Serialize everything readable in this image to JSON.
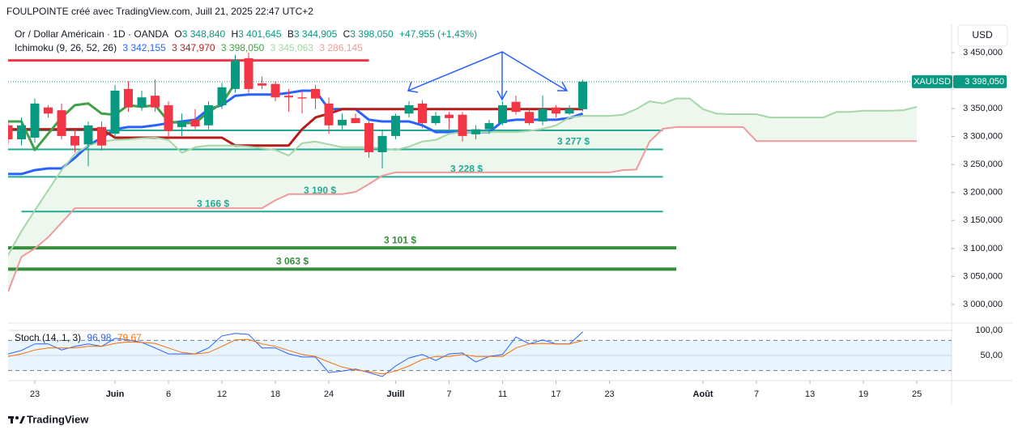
{
  "header": {
    "title": "FOULPOINTE créé avec TradingView.com, Juill 21, 2025 22:47 UTC+2",
    "symbol": "Or / Dollar Américain · 1D · OANDA",
    "ohlc": [
      {
        "letter": "O",
        "value": "3 348,840"
      },
      {
        "letter": "H",
        "value": "3 401,645"
      },
      {
        "letter": "B",
        "value": "3 344,905"
      },
      {
        "letter": "C",
        "value": "3 398,050"
      }
    ],
    "change": "+47,955 (+1,43%)",
    "up_color": "#089981",
    "indicator": {
      "name": "Ichimoku (9, 26, 52, 26)",
      "values": [
        {
          "value": "3 342,155",
          "color": "#2962ff"
        },
        {
          "value": "3 347,970",
          "color": "#b71c1c"
        },
        {
          "value": "3 398,050",
          "color": "#43a047"
        },
        {
          "value": "3 345,063",
          "color": "#a5d6a7"
        },
        {
          "value": "3 286,145",
          "color": "#ef9a9a"
        }
      ]
    },
    "oscillator": {
      "name": "Stoch (14, 1, 3)",
      "values": [
        {
          "value": "96,98",
          "color": "#2962ff"
        },
        {
          "value": "79,67",
          "color": "#ff6d00"
        }
      ]
    },
    "currency": "USD",
    "brand": "TradingView"
  },
  "chart_data": [
    {
      "type": "candlestick",
      "xlim": [
        0,
        70.6
      ],
      "ylim": [
        2970000,
        3500000
      ],
      "xticks": [
        {
          "value": 2,
          "label": "23"
        },
        {
          "value": 8,
          "label": "Juin"
        },
        {
          "value": 12,
          "label": "6"
        },
        {
          "value": 16,
          "label": "12"
        },
        {
          "value": 20,
          "label": "18"
        },
        {
          "value": 24,
          "label": "24"
        },
        {
          "value": 29,
          "label": "Juill"
        },
        {
          "value": 33,
          "label": "7"
        },
        {
          "value": 37,
          "label": "11"
        },
        {
          "value": 41,
          "label": "17"
        },
        {
          "value": 45,
          "label": "23"
        },
        {
          "value": 52,
          "label": "Août"
        },
        {
          "value": 56,
          "label": "7"
        },
        {
          "value": 60,
          "label": "13"
        },
        {
          "value": 64,
          "label": "19"
        },
        {
          "value": 68,
          "label": "25"
        }
      ],
      "yticks": [
        {
          "value": 3450000,
          "label": "3 450,000"
        },
        {
          "value": 3400000,
          "label": "3 400,000"
        },
        {
          "value": 3350000,
          "label": "3 350,000"
        },
        {
          "value": 3300000,
          "label": "3 300,000"
        },
        {
          "value": 3250000,
          "label": "3 250,000"
        },
        {
          "value": 3200000,
          "label": "3 200,000"
        },
        {
          "value": 3150000,
          "label": "3 150,000"
        },
        {
          "value": 3100000,
          "label": "3 100,000"
        },
        {
          "value": 3050000,
          "label": "3 050,000"
        },
        {
          "value": 3000000,
          "label": "3 000,000"
        }
      ],
      "grid": false,
      "up_color": "#089981",
      "down_color": "#f23645",
      "open": [
        3320000,
        3295000,
        3298000,
        3352000,
        3347000,
        3301000,
        3286000,
        3317000,
        3305000,
        3385000,
        3353000,
        3373000,
        3356000,
        3317000,
        3330000,
        3320000,
        3356000,
        3385000,
        3440000,
        3395000,
        3394000,
        3373000,
        3370000,
        3385000,
        3359000,
        3320000,
        3333000,
        3324000,
        3272000,
        3301000,
        3341000,
        3359000,
        3324000,
        3339000,
        3339000,
        3304000,
        3313000,
        3324000,
        3362000,
        3344000,
        3327000,
        3352000,
        3341000,
        3348840
      ],
      "high": [
        3327000,
        3334000,
        3368000,
        3356000,
        3359000,
        3313000,
        3327000,
        3327000,
        3392000,
        3399000,
        3382000,
        3402000,
        3363000,
        3341000,
        3349000,
        3363000,
        3396000,
        3446000,
        3450000,
        3407000,
        3399000,
        3385000,
        3382000,
        3392000,
        3370000,
        3341000,
        3341000,
        3327000,
        3313000,
        3341000,
        3363000,
        3365000,
        3344000,
        3344000,
        3344000,
        3320000,
        3330000,
        3363000,
        3373000,
        3349000,
        3373000,
        3356000,
        3356000,
        3401645
      ],
      "low": [
        3286000,
        3284000,
        3289000,
        3334000,
        3295000,
        3272000,
        3247000,
        3275000,
        3298000,
        3344000,
        3346000,
        3344000,
        3298000,
        3301000,
        3313000,
        3313000,
        3349000,
        3378000,
        3378000,
        3385000,
        3363000,
        3344000,
        3341000,
        3349000,
        3305000,
        3313000,
        3324000,
        3262000,
        3243000,
        3295000,
        3334000,
        3315000,
        3320000,
        3313000,
        3291000,
        3295000,
        3305000,
        3320000,
        3339000,
        3320000,
        3320000,
        3334000,
        3339000,
        3344905
      ],
      "close": [
        3295000,
        3320000,
        3359000,
        3341000,
        3301000,
        3284000,
        3320000,
        3284000,
        3382000,
        3352000,
        3370000,
        3352000,
        3310000,
        3327000,
        3318000,
        3356000,
        3388000,
        3436000,
        3385000,
        3391000,
        3370000,
        3370000,
        3368000,
        3368000,
        3320000,
        3330000,
        3324000,
        3272000,
        3301000,
        3337000,
        3356000,
        3324000,
        3337000,
        3333000,
        3301000,
        3313000,
        3324000,
        3356000,
        3344000,
        3324000,
        3349000,
        3341000,
        3349000,
        3398050
      ],
      "series": [
        {
          "color": "#2962ff",
          "width": 3,
          "values": [
            3233000,
            3233000,
            3240000,
            3243000,
            3243000,
            3262000,
            3284000,
            3298000,
            3313000,
            3317000,
            3317000,
            3320000,
            3324000,
            3327000,
            3330000,
            3349000,
            3356000,
            3373000,
            3375000,
            3375000,
            3375000,
            3378000,
            3382000,
            3382000,
            3349000,
            3349000,
            3349000,
            3330000,
            3327000,
            3327000,
            3327000,
            3320000,
            3308000,
            3308000,
            3308000,
            3308000,
            3308000,
            3327000,
            3330000,
            3330000,
            3330000,
            3330000,
            3333000,
            3341000
          ]
        },
        {
          "color": "#b71c1c",
          "width": 3,
          "values": [
            3313000,
            3313000,
            3313000,
            3313000,
            3313000,
            3313000,
            3313000,
            3313000,
            3298000,
            3298000,
            3298000,
            3298000,
            3298000,
            3298000,
            3298000,
            3298000,
            3298000,
            3284000,
            3284000,
            3284000,
            3284000,
            3284000,
            3313000,
            3334000,
            3341000,
            3349000,
            3349000,
            3349000,
            3349000,
            3349000,
            3349000,
            3349000,
            3349000,
            3349000,
            3349000,
            3349000,
            3349000,
            3349000,
            3349000,
            3349000,
            3349000,
            3349000,
            3349000,
            3349000
          ]
        },
        {
          "color": "#43a047",
          "width": 3,
          "values": [
            3327000,
            3327000,
            3276000,
            3305000,
            3334000,
            3356000,
            3359000,
            3341000,
            3339000,
            3356000,
            3353000,
            3356000,
            3327000,
            3324000,
            3324000,
            3344000,
            3359000,
            3396000,
            null,
            null,
            null,
            null,
            null,
            null,
            null,
            null,
            null,
            null,
            null,
            null,
            null,
            null,
            null,
            null,
            null,
            null,
            null,
            null,
            null,
            null,
            null,
            null,
            null,
            null
          ]
        },
        {
          "color": "#a5d6a7",
          "width": 2,
          "cloud": "upper",
          "values": [
            3088000,
            3131000,
            3168000,
            3204000,
            3240000,
            3269000,
            3284000,
            3291000,
            3294000,
            3295000,
            3297000,
            3298000,
            3294000,
            3271000,
            3281000,
            3284000,
            3284000,
            3284000,
            3282000,
            3279000,
            3276000,
            3266000,
            3288000,
            3291000,
            3286000,
            3281000,
            3281000,
            3281000,
            3279000,
            3276000,
            3282000,
            3291000,
            3294000,
            3305000,
            3308000,
            3308000,
            3308000,
            3308000,
            3308000,
            3310000,
            3314000,
            3320000,
            3334000,
            3337000,
            3337000,
            3337000,
            3339000,
            3349000,
            3363000,
            3359000,
            3368000,
            3368000,
            3349000,
            3341000,
            3340000,
            3340000,
            3340000,
            3334000,
            3334000,
            3334000,
            3334000,
            3334000,
            3344000,
            3344000,
            3346000,
            3346000,
            3346000,
            3347000,
            3353000
          ]
        },
        {
          "color": "#ef9a9a",
          "width": 2,
          "cloud": "lower",
          "values": [
            3023000,
            3085000,
            3100000,
            3120000,
            3146000,
            3172000,
            3172000,
            3172000,
            3172000,
            3172000,
            3172000,
            3172000,
            3172000,
            3172000,
            3172000,
            3172000,
            3172000,
            3172000,
            3172000,
            3172000,
            3186000,
            3197000,
            3197000,
            3197000,
            3197000,
            3197000,
            3201000,
            3215000,
            3230000,
            3236000,
            3236000,
            3236000,
            3236000,
            3236000,
            3236000,
            3236000,
            3236000,
            3236000,
            3236000,
            3236000,
            3236000,
            3236000,
            3236000,
            3236000,
            3236000,
            3236000,
            3240000,
            3241000,
            3291000,
            3314000,
            3317000,
            3317000,
            3317000,
            3317000,
            3317000,
            3317000,
            3292000,
            3292000,
            3292000,
            3292000,
            3292000,
            3292000,
            3292000,
            3292000,
            3292000,
            3292000,
            3292000,
            3292000,
            3292000
          ]
        }
      ],
      "cloud_color": "#4caf50",
      "levels": [
        {
          "value": 3436000,
          "x": [
            0,
            27
          ],
          "color": "#f23645",
          "width": 3
        },
        {
          "value": 3311000,
          "x": [
            0,
            49
          ],
          "color": "#22ab94",
          "width": 2
        },
        {
          "value": 3277000,
          "x": [
            0,
            49
          ],
          "color": "#22ab94",
          "width": 2,
          "label": "3 277 $"
        },
        {
          "value": 3228000,
          "x": [
            0,
            49
          ],
          "color": "#22ab94",
          "width": 2,
          "label": "3 228 $"
        },
        {
          "value": 3190000,
          "color": "#22ab94",
          "label": "3 190 $"
        },
        {
          "value": 3166000,
          "x": [
            1,
            49
          ],
          "color": "#22ab94",
          "width": 2,
          "label": "3 166 $"
        },
        {
          "value": 3101000,
          "x": [
            0,
            50
          ],
          "color": "#388e3c",
          "width": 4,
          "label": "3 101 $"
        },
        {
          "value": 3063000,
          "x": [
            0,
            50
          ],
          "color": "#388e3c",
          "width": 4,
          "label": "3 063 $"
        }
      ],
      "price_badge": {
        "symbol": "XAUUSD",
        "label": "3 398,050",
        "color": "#089981"
      }
    },
    {
      "type": "line",
      "xlim": [
        0,
        70.6
      ],
      "ylim": [
        0,
        110
      ],
      "yticks": [
        {
          "value": 100,
          "label": "100,00"
        },
        {
          "value": 50,
          "label": "50,00"
        }
      ],
      "bands": [
        20,
        80
      ],
      "band_color": "#2196f3",
      "series": [
        {
          "color": "#2962ff",
          "values": [
            53,
            60,
            73,
            73,
            61,
            68,
            73,
            68,
            84,
            81,
            76,
            65,
            53,
            53,
            53,
            65,
            89,
            94,
            92,
            65,
            65,
            53,
            47,
            47,
            16,
            19,
            23,
            16,
            8,
            29,
            45,
            52,
            40,
            53,
            55,
            37,
            48,
            52,
            87,
            73,
            81,
            73,
            73,
            96.98
          ]
        },
        {
          "color": "#ff6d00",
          "values": [
            48,
            53,
            61,
            65,
            65,
            65,
            68,
            68,
            74,
            77,
            76,
            74,
            65,
            56,
            53,
            56,
            68,
            81,
            82,
            73,
            68,
            60,
            52,
            48,
            37,
            27,
            21,
            18,
            13,
            19,
            29,
            42,
            48,
            48,
            52,
            48,
            48,
            48,
            65,
            73,
            74,
            73,
            73,
            79.67
          ]
        }
      ]
    }
  ]
}
